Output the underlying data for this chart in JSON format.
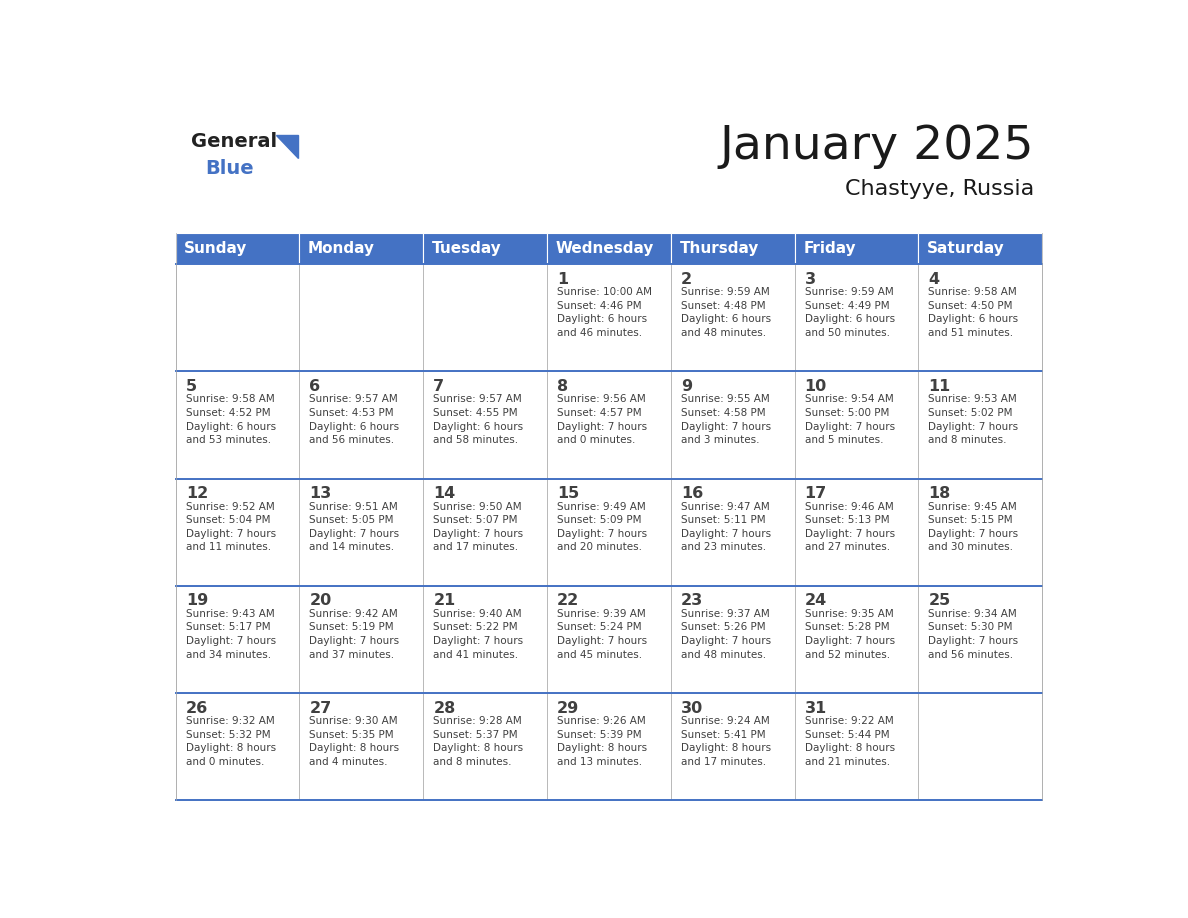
{
  "title": "January 2025",
  "subtitle": "Chastyye, Russia",
  "days_of_week": [
    "Sunday",
    "Monday",
    "Tuesday",
    "Wednesday",
    "Thursday",
    "Friday",
    "Saturday"
  ],
  "header_bg": "#4472C4",
  "header_fg": "#FFFFFF",
  "cell_bg": "#FFFFFF",
  "divider_color": "#4472C4",
  "text_color": "#404040",
  "grid_color": "#AAAAAA",
  "calendar_data": [
    [
      {
        "day": "",
        "info": ""
      },
      {
        "day": "",
        "info": ""
      },
      {
        "day": "",
        "info": ""
      },
      {
        "day": "1",
        "info": "Sunrise: 10:00 AM\nSunset: 4:46 PM\nDaylight: 6 hours\nand 46 minutes."
      },
      {
        "day": "2",
        "info": "Sunrise: 9:59 AM\nSunset: 4:48 PM\nDaylight: 6 hours\nand 48 minutes."
      },
      {
        "day": "3",
        "info": "Sunrise: 9:59 AM\nSunset: 4:49 PM\nDaylight: 6 hours\nand 50 minutes."
      },
      {
        "day": "4",
        "info": "Sunrise: 9:58 AM\nSunset: 4:50 PM\nDaylight: 6 hours\nand 51 minutes."
      }
    ],
    [
      {
        "day": "5",
        "info": "Sunrise: 9:58 AM\nSunset: 4:52 PM\nDaylight: 6 hours\nand 53 minutes."
      },
      {
        "day": "6",
        "info": "Sunrise: 9:57 AM\nSunset: 4:53 PM\nDaylight: 6 hours\nand 56 minutes."
      },
      {
        "day": "7",
        "info": "Sunrise: 9:57 AM\nSunset: 4:55 PM\nDaylight: 6 hours\nand 58 minutes."
      },
      {
        "day": "8",
        "info": "Sunrise: 9:56 AM\nSunset: 4:57 PM\nDaylight: 7 hours\nand 0 minutes."
      },
      {
        "day": "9",
        "info": "Sunrise: 9:55 AM\nSunset: 4:58 PM\nDaylight: 7 hours\nand 3 minutes."
      },
      {
        "day": "10",
        "info": "Sunrise: 9:54 AM\nSunset: 5:00 PM\nDaylight: 7 hours\nand 5 minutes."
      },
      {
        "day": "11",
        "info": "Sunrise: 9:53 AM\nSunset: 5:02 PM\nDaylight: 7 hours\nand 8 minutes."
      }
    ],
    [
      {
        "day": "12",
        "info": "Sunrise: 9:52 AM\nSunset: 5:04 PM\nDaylight: 7 hours\nand 11 minutes."
      },
      {
        "day": "13",
        "info": "Sunrise: 9:51 AM\nSunset: 5:05 PM\nDaylight: 7 hours\nand 14 minutes."
      },
      {
        "day": "14",
        "info": "Sunrise: 9:50 AM\nSunset: 5:07 PM\nDaylight: 7 hours\nand 17 minutes."
      },
      {
        "day": "15",
        "info": "Sunrise: 9:49 AM\nSunset: 5:09 PM\nDaylight: 7 hours\nand 20 minutes."
      },
      {
        "day": "16",
        "info": "Sunrise: 9:47 AM\nSunset: 5:11 PM\nDaylight: 7 hours\nand 23 minutes."
      },
      {
        "day": "17",
        "info": "Sunrise: 9:46 AM\nSunset: 5:13 PM\nDaylight: 7 hours\nand 27 minutes."
      },
      {
        "day": "18",
        "info": "Sunrise: 9:45 AM\nSunset: 5:15 PM\nDaylight: 7 hours\nand 30 minutes."
      }
    ],
    [
      {
        "day": "19",
        "info": "Sunrise: 9:43 AM\nSunset: 5:17 PM\nDaylight: 7 hours\nand 34 minutes."
      },
      {
        "day": "20",
        "info": "Sunrise: 9:42 AM\nSunset: 5:19 PM\nDaylight: 7 hours\nand 37 minutes."
      },
      {
        "day": "21",
        "info": "Sunrise: 9:40 AM\nSunset: 5:22 PM\nDaylight: 7 hours\nand 41 minutes."
      },
      {
        "day": "22",
        "info": "Sunrise: 9:39 AM\nSunset: 5:24 PM\nDaylight: 7 hours\nand 45 minutes."
      },
      {
        "day": "23",
        "info": "Sunrise: 9:37 AM\nSunset: 5:26 PM\nDaylight: 7 hours\nand 48 minutes."
      },
      {
        "day": "24",
        "info": "Sunrise: 9:35 AM\nSunset: 5:28 PM\nDaylight: 7 hours\nand 52 minutes."
      },
      {
        "day": "25",
        "info": "Sunrise: 9:34 AM\nSunset: 5:30 PM\nDaylight: 7 hours\nand 56 minutes."
      }
    ],
    [
      {
        "day": "26",
        "info": "Sunrise: 9:32 AM\nSunset: 5:32 PM\nDaylight: 8 hours\nand 0 minutes."
      },
      {
        "day": "27",
        "info": "Sunrise: 9:30 AM\nSunset: 5:35 PM\nDaylight: 8 hours\nand 4 minutes."
      },
      {
        "day": "28",
        "info": "Sunrise: 9:28 AM\nSunset: 5:37 PM\nDaylight: 8 hours\nand 8 minutes."
      },
      {
        "day": "29",
        "info": "Sunrise: 9:26 AM\nSunset: 5:39 PM\nDaylight: 8 hours\nand 13 minutes."
      },
      {
        "day": "30",
        "info": "Sunrise: 9:24 AM\nSunset: 5:41 PM\nDaylight: 8 hours\nand 17 minutes."
      },
      {
        "day": "31",
        "info": "Sunrise: 9:22 AM\nSunset: 5:44 PM\nDaylight: 8 hours\nand 21 minutes."
      },
      {
        "day": "",
        "info": ""
      }
    ]
  ]
}
